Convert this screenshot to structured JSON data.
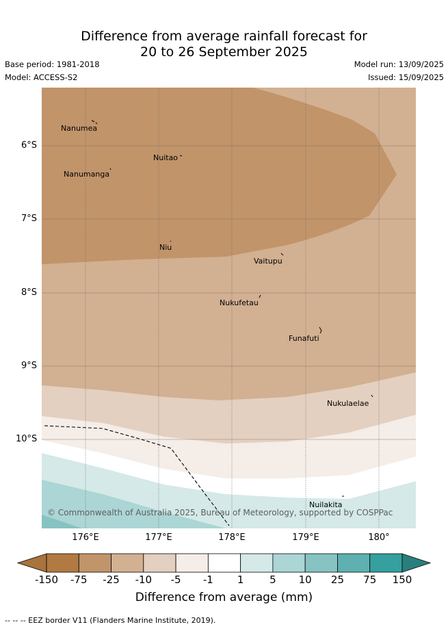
{
  "header": {
    "title_line1": "Difference from average rainfall forecast for",
    "title_line2": "20 to 26 September 2025",
    "base_period": "Base period: 1981-2018",
    "model": "Model: ACCESS-S2",
    "model_run": "Model run: 13/09/2025",
    "issued": "Issued: 15/09/2025"
  },
  "map": {
    "latitude_labels": [
      "6°S",
      "7°S",
      "8°S",
      "9°S",
      "10°S"
    ],
    "longitude_labels": [
      "176°E",
      "177°E",
      "178°E",
      "179°E",
      "180°"
    ],
    "places": [
      {
        "name": "Nanumea",
        "id": "nanumea"
      },
      {
        "name": "Nuitao",
        "id": "nuitao"
      },
      {
        "name": "Nanumanga",
        "id": "nanumanga"
      },
      {
        "name": "Niu",
        "id": "niu"
      },
      {
        "name": "Vaitupu",
        "id": "vaitupu"
      },
      {
        "name": "Nukufetau",
        "id": "nukufetau"
      },
      {
        "name": "Funafuti",
        "id": "funafuti"
      },
      {
        "name": "Nukulaelae",
        "id": "nukulaelae"
      },
      {
        "name": "Nuilakita",
        "id": "nuilakita"
      }
    ],
    "credit": "© Commonwealth of Australia 2025, Bureau of Meteorology, supported by COSPPac"
  },
  "colorbar": {
    "ticks": [
      "-150",
      "-75",
      "-25",
      "-10",
      "-5",
      "-1",
      "1",
      "5",
      "10",
      "25",
      "75",
      "150"
    ],
    "colors": [
      "#a8733c",
      "#b07a42",
      "#c1946a",
      "#d2b092",
      "#e3d0c0",
      "#f4ede8",
      "#ffffff",
      "#d4e9e8",
      "#acd5d5",
      "#86c3c2",
      "#5eb1b0",
      "#35a09f",
      "#2a7f7e"
    ],
    "label": "Difference from average (mm)"
  },
  "footer": {
    "eez_note": "-- -- -- EEZ border V11 (Flanders Marine Institute, 2019)."
  }
}
